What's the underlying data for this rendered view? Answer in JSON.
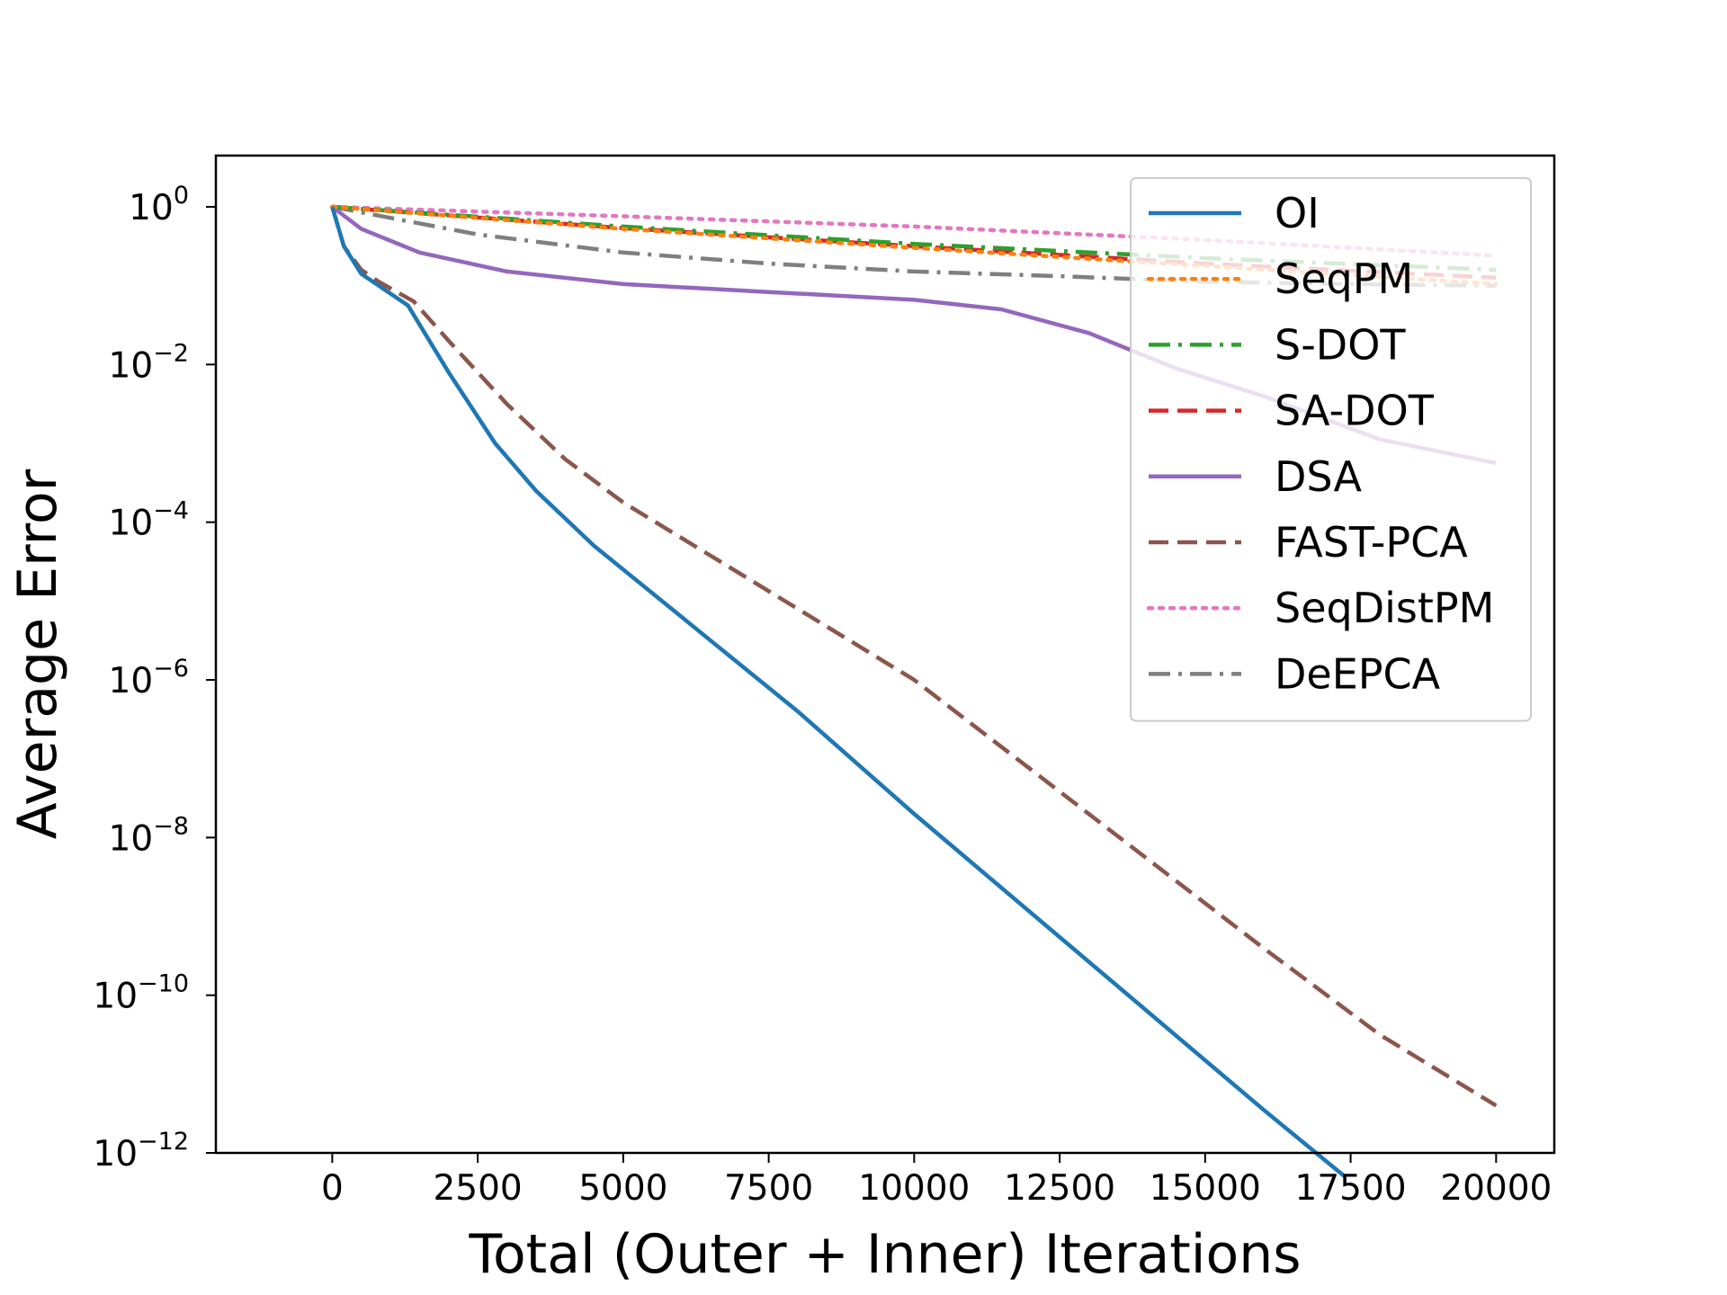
{
  "chart_data": {
    "type": "line",
    "title": "",
    "xlabel": "Total (Outer + Inner) Iterations",
    "ylabel": "Average Error",
    "yscale": "log",
    "xlim": [
      -2000,
      21000
    ],
    "ylim_exp": [
      -12,
      0.65
    ],
    "x_ticks": [
      {
        "value": 0,
        "label": "0"
      },
      {
        "value": 2500,
        "label": "2500"
      },
      {
        "value": 5000,
        "label": "5000"
      },
      {
        "value": 7500,
        "label": "7500"
      },
      {
        "value": 10000,
        "label": "10000"
      },
      {
        "value": 12500,
        "label": "12500"
      },
      {
        "value": 15000,
        "label": "15000"
      },
      {
        "value": 17500,
        "label": "17500"
      },
      {
        "value": 20000,
        "label": "20000"
      }
    ],
    "y_ticks": [
      {
        "exp": 0,
        "base": "10",
        "sup": "0"
      },
      {
        "exp": -2,
        "base": "10",
        "sup": "−2"
      },
      {
        "exp": -4,
        "base": "10",
        "sup": "−4"
      },
      {
        "exp": -6,
        "base": "10",
        "sup": "−6"
      },
      {
        "exp": -8,
        "base": "10",
        "sup": "−8"
      },
      {
        "exp": -10,
        "base": "10",
        "sup": "−10"
      },
      {
        "exp": -12,
        "base": "10",
        "sup": "−12"
      }
    ],
    "legend_position": "upper-right",
    "series": [
      {
        "name": "OI",
        "color": "#1f77b4",
        "style": "solid",
        "x": [
          0,
          200,
          500,
          800,
          1300,
          2000,
          2800,
          3500,
          4500,
          6000,
          8000,
          10000,
          12000,
          14000,
          16000,
          17400
        ],
        "log10_y": [
          0,
          -0.5,
          -0.85,
          -1.0,
          -1.25,
          -2.1,
          -3.0,
          -3.6,
          -4.3,
          -5.2,
          -6.4,
          -7.7,
          -8.95,
          -10.2,
          -11.45,
          -12.3
        ]
      },
      {
        "name": "SeqPM",
        "color": "#ff7f0e",
        "style": "dotted",
        "x": [
          0,
          5000,
          10000,
          15000,
          20000
        ],
        "log10_y": [
          0,
          -0.28,
          -0.52,
          -0.75,
          -0.98
        ]
      },
      {
        "name": "S-DOT",
        "color": "#2ca02c",
        "style": "dashdot",
        "x": [
          0,
          5000,
          10000,
          15000,
          20000
        ],
        "log10_y": [
          0,
          -0.25,
          -0.47,
          -0.65,
          -0.8
        ]
      },
      {
        "name": "SA-DOT",
        "color": "#d62728",
        "style": "dashed",
        "x": [
          0,
          5000,
          10000,
          15000,
          20000
        ],
        "log10_y": [
          0,
          -0.27,
          -0.5,
          -0.72,
          -0.9
        ]
      },
      {
        "name": "DSA",
        "color": "#9467bd",
        "style": "solid",
        "x": [
          0,
          500,
          1500,
          3000,
          5000,
          7500,
          10000,
          11500,
          13000,
          14500,
          16000,
          18000,
          20000
        ],
        "log10_y": [
          0,
          -0.28,
          -0.58,
          -0.82,
          -0.98,
          -1.08,
          -1.18,
          -1.3,
          -1.6,
          -2.05,
          -2.4,
          -2.95,
          -3.25
        ]
      },
      {
        "name": "FAST-PCA",
        "color": "#8c564b",
        "style": "dashed",
        "x": [
          0,
          200,
          500,
          800,
          1400,
          2000,
          3000,
          4000,
          5000,
          7000,
          10000,
          13000,
          16000,
          18000,
          20000
        ],
        "log10_y": [
          0,
          -0.5,
          -0.8,
          -0.95,
          -1.2,
          -1.7,
          -2.5,
          -3.2,
          -3.75,
          -4.65,
          -6.0,
          -7.7,
          -9.4,
          -10.5,
          -11.4
        ]
      },
      {
        "name": "SeqDistPM",
        "color": "#e377c2",
        "style": "dotted",
        "x": [
          0,
          5000,
          10000,
          15000,
          20000
        ],
        "log10_y": [
          0,
          -0.12,
          -0.25,
          -0.42,
          -0.62
        ]
      },
      {
        "name": "DeEPCA",
        "color": "#7f7f7f",
        "style": "dashdot",
        "x": [
          0,
          2500,
          5000,
          7500,
          10000,
          12500,
          15000,
          17500,
          20000
        ],
        "log10_y": [
          0,
          -0.35,
          -0.58,
          -0.72,
          -0.82,
          -0.88,
          -0.95,
          -0.98,
          -1.0
        ]
      }
    ]
  }
}
